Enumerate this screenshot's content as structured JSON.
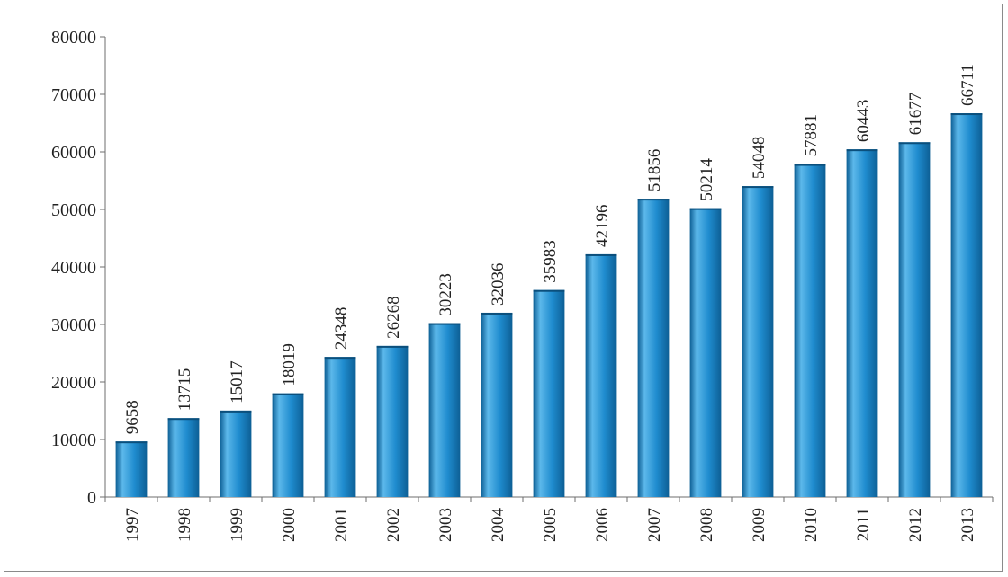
{
  "chart_data": {
    "type": "bar",
    "title": "",
    "xlabel": "",
    "ylabel": "",
    "categories": [
      "1997",
      "1998",
      "1999",
      "2000",
      "2001",
      "2002",
      "2003",
      "2004",
      "2005",
      "2006",
      "2007",
      "2008",
      "2009",
      "2010",
      "2011",
      "2012",
      "2013"
    ],
    "values": [
      9658,
      13715,
      15017,
      18019,
      24348,
      26268,
      30223,
      32036,
      35983,
      42196,
      51856,
      50214,
      54048,
      57881,
      60443,
      61677,
      66711
    ],
    "data_labels": [
      "9658",
      "13715",
      "15017",
      "18019",
      "24348",
      "26268",
      "30223",
      "32036",
      "35983",
      "42196",
      "51856",
      "50214",
      "54048",
      "57881",
      "60443",
      "61677",
      "66711"
    ],
    "ylim": [
      0,
      80000
    ],
    "yticks": [
      0,
      10000,
      20000,
      30000,
      40000,
      50000,
      60000,
      70000,
      80000
    ],
    "ytick_labels": [
      "0",
      "10000",
      "20000",
      "30000",
      "40000",
      "50000",
      "60000",
      "70000",
      "80000"
    ],
    "grid": false,
    "legend": "none",
    "colors": {
      "bar_light": "#5cb8ea",
      "bar_main": "#1f8ccf",
      "bar_dark": "#0d5f95",
      "bar_top": "#0b4f7c",
      "axis": "#6e6e6e",
      "text": "#222222"
    }
  }
}
